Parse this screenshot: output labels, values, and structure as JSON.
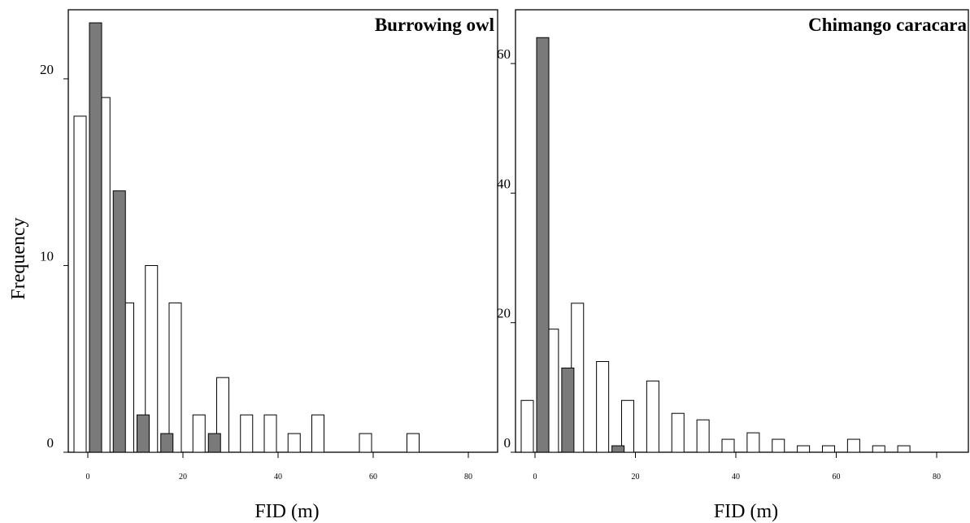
{
  "figure": {
    "ylabel": "Frequency"
  },
  "colors": {
    "filled": "#7a7a7a",
    "open": "#ffffff",
    "stroke": "#000000"
  },
  "chart_data": [
    {
      "type": "bar",
      "title": "Burrowing owl",
      "xlabel": "FID (m)",
      "ylabel": "Frequency",
      "xlim": [
        -2,
        82
      ],
      "ylim": [
        0,
        23.7
      ],
      "xticks": [
        0,
        20,
        40,
        60,
        80
      ],
      "yticks": [
        0,
        10,
        20
      ],
      "grid": false,
      "series": [
        {
          "style": "open",
          "x": [
            0,
            5,
            10,
            15,
            20,
            25,
            30,
            35,
            40,
            45,
            50,
            55,
            60,
            65,
            70,
            75
          ],
          "values": [
            18,
            19,
            8,
            10,
            8,
            2,
            4,
            2,
            2,
            1,
            2,
            0,
            1,
            0,
            1,
            0
          ]
        },
        {
          "style": "filled",
          "x": [
            0,
            5,
            10,
            15,
            20,
            25,
            30,
            35,
            40,
            45,
            50,
            55,
            60,
            65,
            70,
            75
          ],
          "values": [
            23,
            14,
            2,
            1,
            0,
            1,
            0,
            0,
            0,
            0,
            0,
            0,
            0,
            0,
            0,
            0
          ]
        }
      ]
    },
    {
      "type": "bar",
      "title": "Chimango caracara",
      "xlabel": "FID (m)",
      "ylabel": "",
      "xlim": [
        -2,
        82
      ],
      "ylim": [
        0,
        68.3
      ],
      "xticks": [
        0,
        20,
        40,
        60,
        80
      ],
      "yticks": [
        0,
        20,
        40,
        60
      ],
      "grid": false,
      "series": [
        {
          "style": "open",
          "x": [
            0,
            5,
            10,
            15,
            20,
            25,
            30,
            35,
            40,
            45,
            50,
            55,
            60,
            65,
            70,
            75
          ],
          "values": [
            8,
            19,
            23,
            14,
            8,
            11,
            6,
            5,
            2,
            3,
            2,
            1,
            1,
            2,
            1,
            1
          ]
        },
        {
          "style": "filled",
          "x": [
            0,
            5,
            10,
            15,
            20,
            25,
            30,
            35,
            40,
            45,
            50,
            55,
            60,
            65,
            70,
            75
          ],
          "values": [
            64,
            13,
            0,
            1,
            0,
            0,
            0,
            0,
            0,
            0,
            0,
            0,
            0,
            0,
            0,
            0
          ]
        }
      ]
    }
  ]
}
